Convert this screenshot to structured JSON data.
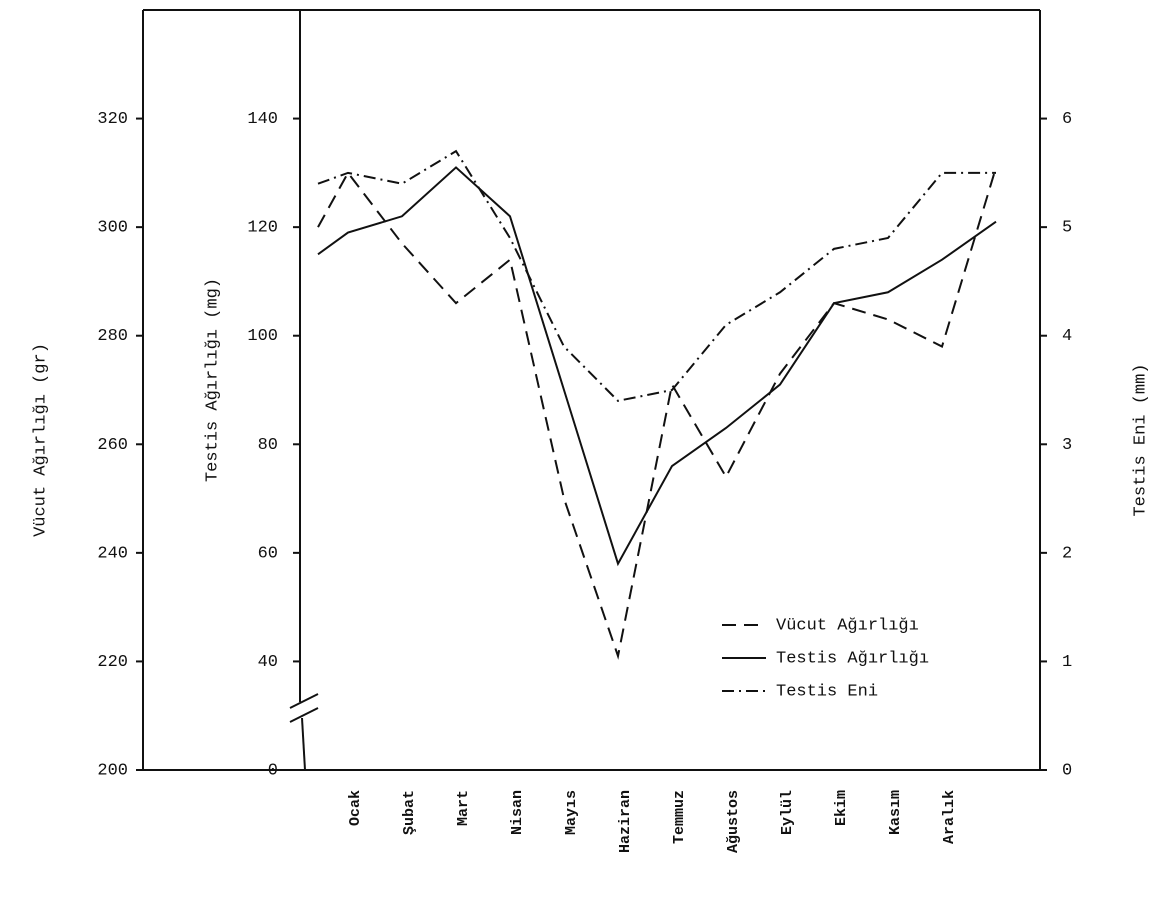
{
  "chart_data": {
    "type": "line",
    "categories": [
      null,
      "Ocak",
      "Şubat",
      "Mart",
      "Nisan",
      "Mayıs",
      "Haziran",
      "Temmuz",
      "Ağustos",
      "Eylül",
      "Ekim",
      "Kasım",
      "Aralık",
      null
    ],
    "ylabel": "Vücut Ağırlığı (gr)",
    "ylim": [
      200,
      340
    ],
    "yticks": [
      200,
      220,
      240,
      260,
      280,
      300,
      320
    ],
    "y2label": "Testis Ağırlığı (mg)",
    "y2lim": [
      0,
      160
    ],
    "y2ticks": [
      0,
      40,
      60,
      80,
      100,
      120,
      140
    ],
    "y2_axis_break": true,
    "y3label": "Testis Eni (mm)",
    "y3lim": [
      0,
      7
    ],
    "y3ticks": [
      0,
      1,
      2,
      3,
      4,
      5,
      6
    ],
    "legend": "lower right",
    "series": [
      {
        "name": "Vücut Ağırlığı",
        "color": "#111111",
        "dash": "dashed",
        "axis": "y",
        "values": [
          300,
          310,
          297,
          286,
          294,
          250,
          221,
          271,
          254,
          273,
          286,
          283,
          278,
          311
        ]
      },
      {
        "name": "Testis Ağırlığı",
        "color": "#111111",
        "dash": "solid",
        "axis": "y2",
        "values": [
          115,
          119,
          122,
          131,
          122,
          90,
          58,
          76,
          83,
          91,
          106,
          108,
          114,
          121
        ]
      },
      {
        "name": "Testis Eni",
        "color": "#111111",
        "dash": "dashdot",
        "axis": "y3",
        "values": [
          5.4,
          5.5,
          5.4,
          5.7,
          4.9,
          3.9,
          3.4,
          3.5,
          4.1,
          4.4,
          4.8,
          4.9,
          5.5,
          5.5
        ]
      }
    ]
  }
}
